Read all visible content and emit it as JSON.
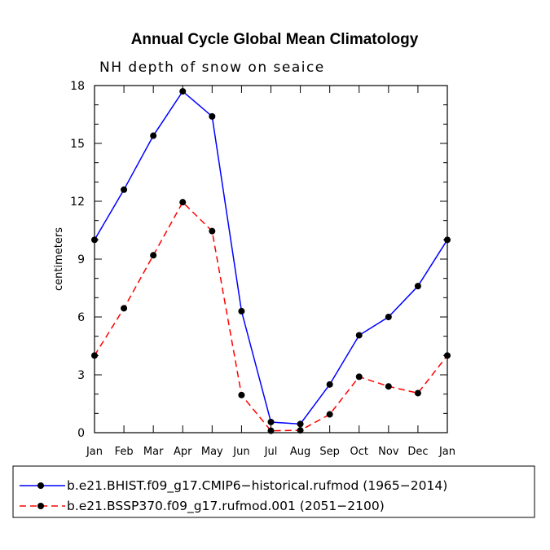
{
  "chart_data": {
    "type": "line",
    "title": "Annual Cycle Global Mean Climatology",
    "subtitle": "NH depth of snow on seaice",
    "xlabel": "",
    "ylabel": "centimeters",
    "categories": [
      "Jan",
      "Feb",
      "Mar",
      "Apr",
      "May",
      "Jun",
      "Jul",
      "Aug",
      "Sep",
      "Oct",
      "Nov",
      "Dec",
      "Jan"
    ],
    "ylim": [
      0,
      18
    ],
    "yticks": [
      "0",
      "3",
      "6",
      "9",
      "12",
      "15",
      "18"
    ],
    "grid": false,
    "legend_position": "bottom",
    "series": [
      {
        "name": "b.e21.BHIST.f09_g17.CMIP6−historical.rufmod (1965−2014)",
        "color": "#0000ff",
        "dash": "solid",
        "values": [
          10.0,
          12.6,
          15.4,
          17.7,
          16.4,
          6.3,
          0.55,
          0.45,
          2.5,
          5.05,
          6.0,
          7.6,
          10.0
        ]
      },
      {
        "name": "b.e21.BSSP370.f09_g17.rufmod.001 (2051−2100)",
        "color": "#ff0000",
        "dash": "dashed",
        "values": [
          4.0,
          6.45,
          9.2,
          11.95,
          10.45,
          1.95,
          0.1,
          0.12,
          0.95,
          2.9,
          2.4,
          2.05,
          4.0
        ]
      }
    ]
  }
}
